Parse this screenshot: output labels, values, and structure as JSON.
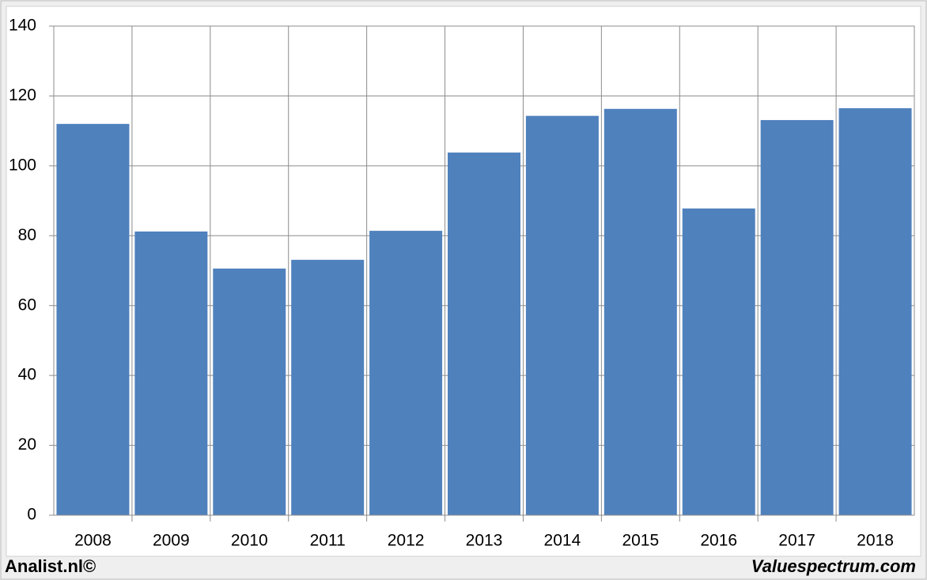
{
  "chart_data": {
    "type": "bar",
    "categories": [
      "2008",
      "2009",
      "2010",
      "2011",
      "2012",
      "2013",
      "2014",
      "2015",
      "2016",
      "2017",
      "2018"
    ],
    "values": [
      112,
      81.2,
      70.6,
      73.1,
      81.4,
      103.8,
      114.3,
      116.3,
      87.8,
      113.1,
      116.5
    ],
    "color": "#4f81bd",
    "ylim": [
      0,
      140
    ],
    "yticks": [
      0,
      20,
      40,
      60,
      80,
      100,
      120,
      140
    ],
    "grid": true
  },
  "footer": {
    "left": "Analist.nl©",
    "right": "Valuespectrum.com"
  }
}
